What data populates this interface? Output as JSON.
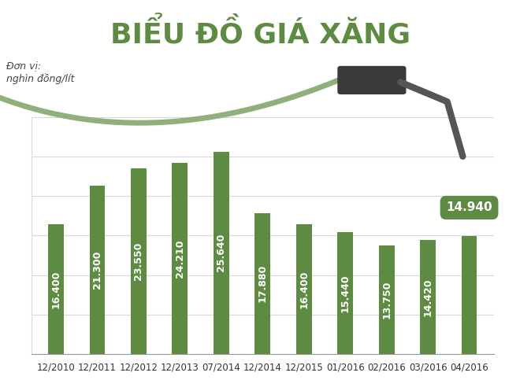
{
  "chart_data": {
    "type": "bar",
    "title": "BIỂU ĐỒ GIÁ XĂNG",
    "unit_label": "Đơn vị:\nnghìn đồng/lít",
    "categories": [
      "12/2010",
      "12/2011",
      "12/2012",
      "12/2013",
      "07/2014",
      "12/2014",
      "12/2015",
      "01/2016",
      "02/2016",
      "03/2016",
      "04/2016"
    ],
    "values": [
      16.4,
      21.3,
      23.55,
      24.21,
      25.64,
      17.88,
      16.4,
      15.44,
      13.75,
      14.42,
      14.94
    ],
    "value_labels": [
      "16.400",
      "21.300",
      "23.550",
      "24.210",
      "25.640",
      "17.880",
      "16.400",
      "15.440",
      "13.750",
      "14.420",
      "14.940"
    ],
    "color": "#5e8b42",
    "ylim": [
      0,
      30
    ],
    "yticks": [
      0,
      5,
      10,
      15,
      20,
      25,
      30
    ],
    "grid": true,
    "data_labels": true,
    "tick_labels": "x"
  }
}
